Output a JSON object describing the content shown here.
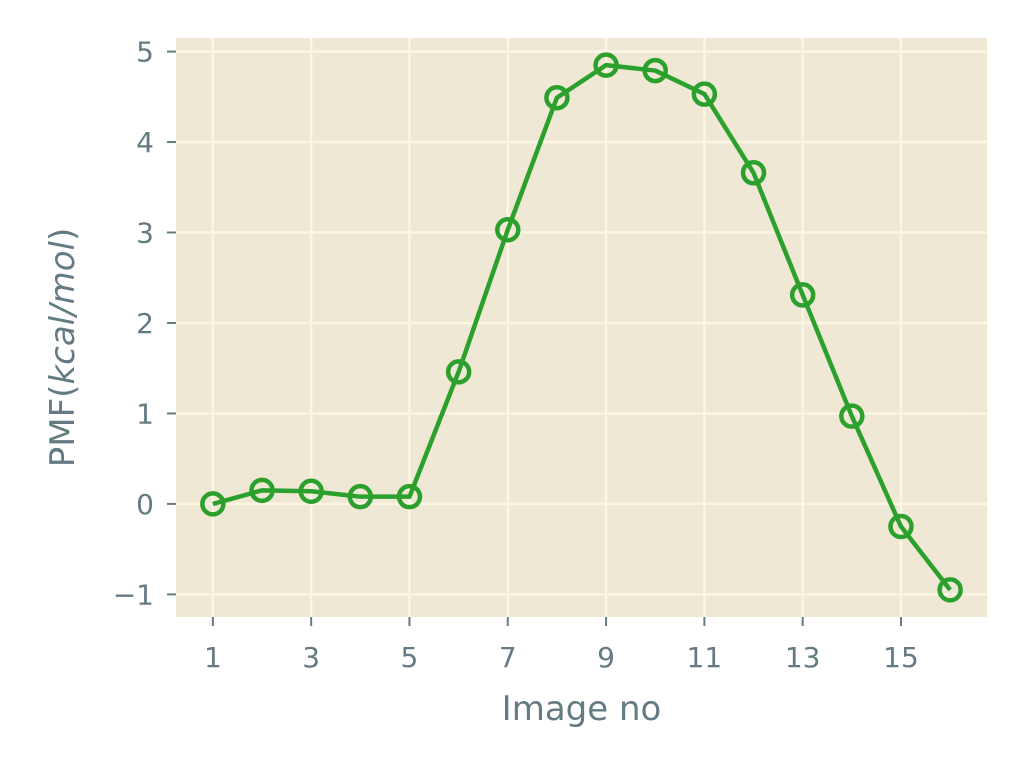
{
  "chart_data": {
    "type": "line",
    "title": "",
    "xlabel": "Image no",
    "ylabel_parts": {
      "prefix": "PMF(",
      "italic": "kcal/mol",
      "suffix": ")"
    },
    "x": [
      1,
      2,
      3,
      4,
      5,
      6,
      7,
      8,
      9,
      10,
      11,
      12,
      13,
      14,
      15,
      16
    ],
    "series": [
      {
        "values": [
          0.0,
          0.15,
          0.14,
          0.08,
          0.08,
          1.46,
          3.03,
          4.49,
          4.85,
          4.79,
          4.53,
          3.66,
          2.31,
          0.97,
          -0.25,
          -0.95
        ],
        "color": "#2ca02c",
        "marker": "open-circle"
      }
    ],
    "xticks": [
      1,
      3,
      5,
      7,
      9,
      11,
      13,
      15
    ],
    "yticks": [
      -1,
      0,
      1,
      2,
      3,
      4,
      5
    ],
    "ytick_labels": [
      "−1",
      "0",
      "1",
      "2",
      "3",
      "4",
      "5"
    ],
    "xlim": [
      0.25,
      16.75
    ],
    "ylim": [
      -1.25,
      5.15
    ],
    "grid": true,
    "legend": "none",
    "colors": {
      "plot_background": "#eee8d5",
      "grid": "#fdf6e3",
      "text": "#657b83"
    }
  }
}
